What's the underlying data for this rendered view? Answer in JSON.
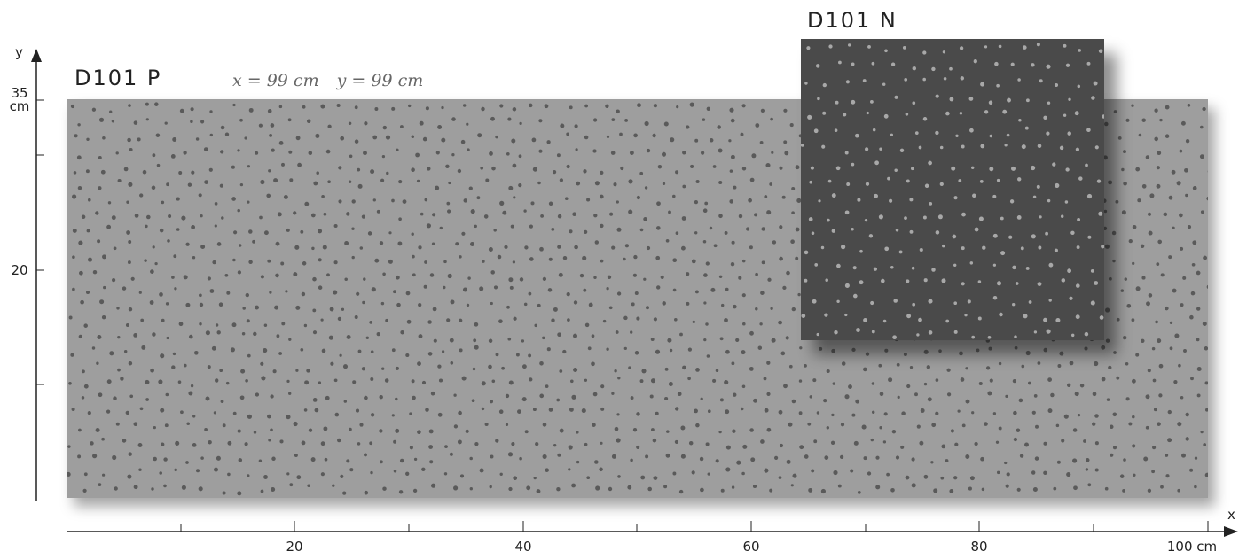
{
  "panels": {
    "main": {
      "title": "D101 P",
      "dimension_x": "x = 99 cm",
      "dimension_y": "y = 99 cm",
      "color": "#9e9e9e",
      "dot_color": "#5a5a5a"
    },
    "inset": {
      "title": "D101 N",
      "color": "#4a4a4a",
      "dot_color": "#a8a8a8"
    }
  },
  "axes": {
    "y_axis_label": "y",
    "x_axis_label": "x",
    "y_tick_top_value": "35",
    "y_tick_top_unit": "cm",
    "y_tick_mid": "20",
    "x_ticks": [
      "20",
      "40",
      "60",
      "80",
      "100 cm"
    ]
  }
}
